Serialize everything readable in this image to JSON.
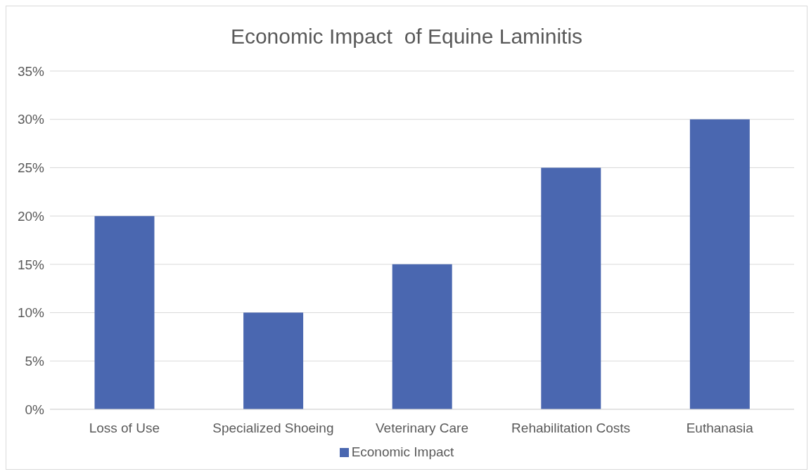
{
  "chart_data": {
    "type": "bar",
    "title": "Economic Impact  of Equine Laminitis",
    "categories": [
      "Loss of Use",
      "Specialized Shoeing",
      "Veterinary Care",
      "Rehabilitation Costs",
      "Euthanasia"
    ],
    "series": [
      {
        "name": "Economic Impact",
        "color": "#4a67b0",
        "values": [
          20,
          10,
          15,
          25,
          30
        ]
      }
    ],
    "ylim": [
      0,
      35
    ],
    "yticks": [
      {
        "value": 0,
        "label": "0%"
      },
      {
        "value": 5,
        "label": "5%"
      },
      {
        "value": 10,
        "label": "10%"
      },
      {
        "value": 15,
        "label": "15%"
      },
      {
        "value": 20,
        "label": "20%"
      },
      {
        "value": 25,
        "label": "25%"
      },
      {
        "value": 30,
        "label": "30%"
      },
      {
        "value": 35,
        "label": "35%"
      }
    ],
    "grid": "y",
    "legend": "bottom"
  }
}
